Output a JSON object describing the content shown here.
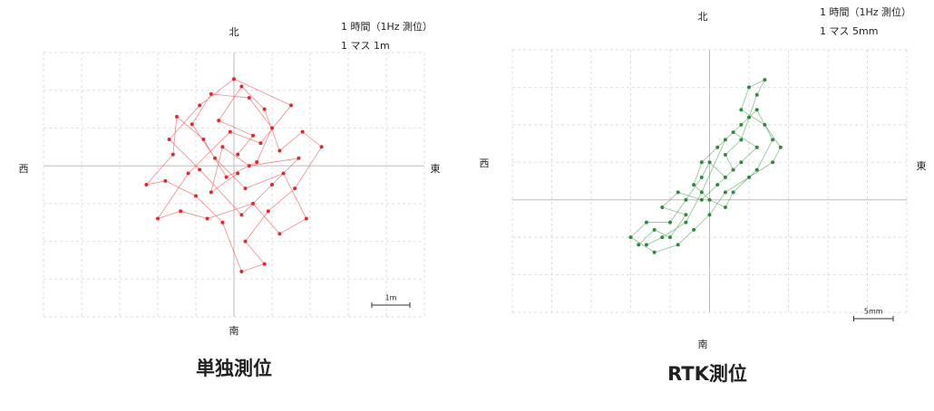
{
  "chart_data": [
    {
      "type": "scatter",
      "title": "単独測位",
      "color": "#e8262a",
      "compass": {
        "north": "北",
        "south": "南",
        "west": "西",
        "east": "東"
      },
      "annotations": [
        "1 時間（1Hz 測位）",
        "1 マス 1m"
      ],
      "scale_label": "1m",
      "xlim": [
        -5,
        5
      ],
      "ylim": [
        -4,
        3
      ],
      "xticks": [
        -5,
        -4,
        -3,
        -2,
        -1,
        0,
        1,
        2,
        3,
        4,
        5
      ],
      "yticks": [
        -4,
        -3,
        -2,
        -1,
        0,
        1,
        2,
        3
      ],
      "grid": true,
      "x": [
        0.1,
        0.5,
        -0.4,
        0.2,
        0.8,
        1.2,
        1.8,
        2.3,
        1.6,
        0.9,
        0.3,
        0.8,
        0.2,
        -0.3,
        -1.0,
        -1.8,
        -2.3,
        -1.6,
        -1.5,
        -0.8,
        -0.2,
        0.6,
        1.0,
        0.4,
        -0.6,
        -1.1,
        -0.5,
        0.3,
        1.3,
        1.9,
        1.2,
        0.5,
        -0.7,
        -1.4,
        -2.0,
        -1.2,
        -0.1,
        0.7,
        1.5,
        0.0,
        -0.9,
        -1.7,
        -0.9,
        0.2,
        1.0,
        1.7,
        0.4,
        -0.3,
        -0.6,
        0.1
      ],
      "values": [
        0.3,
        0.8,
        1.2,
        2.1,
        1.5,
        0.4,
        0.9,
        0.5,
        -0.6,
        -1.2,
        -2.0,
        -2.6,
        -2.8,
        -1.5,
        -0.8,
        -0.4,
        -0.5,
        0.3,
        1.3,
        0.7,
        -0.3,
        0.1,
        1.0,
        1.8,
        1.9,
        1.1,
        0.2,
        -0.6,
        -0.2,
        -1.4,
        -1.8,
        -1.0,
        -1.4,
        -1.2,
        -1.4,
        -0.2,
        0.9,
        0.6,
        1.6,
        2.3,
        1.6,
        0.7,
        -0.1,
        -1.3,
        -0.5,
        0.2,
        0.0,
        0.5,
        -0.7,
        -0.2
      ]
    },
    {
      "type": "scatter",
      "title": "RTK測位",
      "color": "#2e8b3a",
      "compass": {
        "north": "北",
        "south": "南",
        "west": "西",
        "east": "東"
      },
      "annotations": [
        "1 時間（1Hz 測位）",
        "1 マス 5mm"
      ],
      "scale_label": "5mm",
      "xlim": [
        -25,
        25
      ],
      "ylim": [
        -15,
        20
      ],
      "xticks": [
        -25,
        -20,
        -15,
        -10,
        -5,
        0,
        5,
        10,
        15,
        20,
        25
      ],
      "yticks": [
        -15,
        -10,
        -5,
        0,
        5,
        10,
        15,
        20
      ],
      "grid": true,
      "x": [
        -9,
        -7,
        -5,
        -3,
        -6,
        -4,
        -1,
        1,
        3,
        2,
        4,
        5,
        6,
        7,
        5,
        4,
        7,
        9,
        8,
        5,
        2,
        0,
        -2,
        -4,
        -7,
        -10,
        -8,
        -5,
        -3,
        -1,
        0,
        2,
        4,
        6,
        3,
        1,
        -1,
        -2,
        0,
        2,
        3,
        6,
        8,
        6,
        4,
        2,
        -1,
        -3,
        -6,
        -8
      ],
      "values": [
        -6,
        -4,
        -5,
        -2,
        -1,
        1,
        0,
        2,
        4,
        6,
        8,
        11,
        14,
        16,
        15,
        12,
        10,
        7,
        5,
        3,
        1,
        -2,
        -4,
        -6,
        -7,
        -5,
        -3,
        -3,
        0,
        3,
        5,
        3,
        5,
        7,
        9,
        7,
        5,
        2,
        0,
        -1,
        1,
        4,
        8,
        12,
        10,
        8,
        1,
        -3,
        -5,
        -6
      ]
    }
  ]
}
